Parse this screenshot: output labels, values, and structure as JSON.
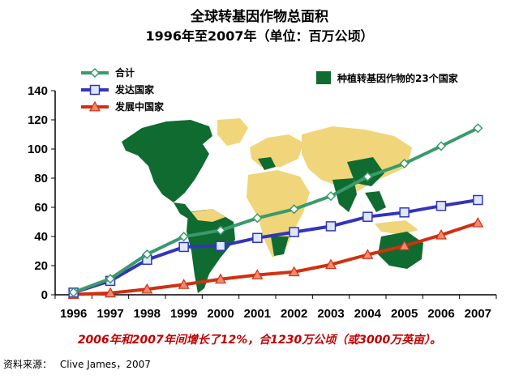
{
  "chart_data": {
    "type": "line",
    "title": "全球转基因作物总面积",
    "subtitle": "1996年至2007年（单位：百万公顷）",
    "categories": [
      "1996",
      "1997",
      "1998",
      "1999",
      "2000",
      "2001",
      "2002",
      "2003",
      "2004",
      "2005",
      "2006",
      "2007"
    ],
    "y_ticks": [
      "0",
      "20",
      "40",
      "60",
      "80",
      "100",
      "120",
      "140"
    ],
    "ylim": [
      0,
      140
    ],
    "series": [
      {
        "name": "合计",
        "color": "#3a9a6c",
        "marker": "diamond",
        "values": [
          1.7,
          11,
          27.8,
          39.9,
          44.2,
          52.6,
          58.7,
          67.7,
          81,
          90,
          102,
          114.3
        ]
      },
      {
        "name": "发达国家",
        "color": "#3333bb",
        "marker": "square",
        "values": [
          1.5,
          9.5,
          24,
          32.8,
          33.5,
          39,
          43,
          47,
          53.5,
          56.5,
          61,
          65
        ]
      },
      {
        "name": "发展中国家",
        "color": "#d03010",
        "marker": "triangle",
        "values": [
          0.2,
          1.2,
          3.8,
          7,
          10.7,
          13.6,
          15.7,
          20.7,
          27.5,
          33.5,
          41,
          49.3
        ]
      }
    ],
    "map_legend": {
      "label": "种植转基因作物的23个国家",
      "color": "#0f6b2f"
    },
    "legend_position": "top-left"
  },
  "note": "2006年和2007年间增长了12%，合1230万公顷（或3000万英亩）。",
  "source": {
    "label": "资料来源：",
    "value": "Clive James，2007"
  }
}
